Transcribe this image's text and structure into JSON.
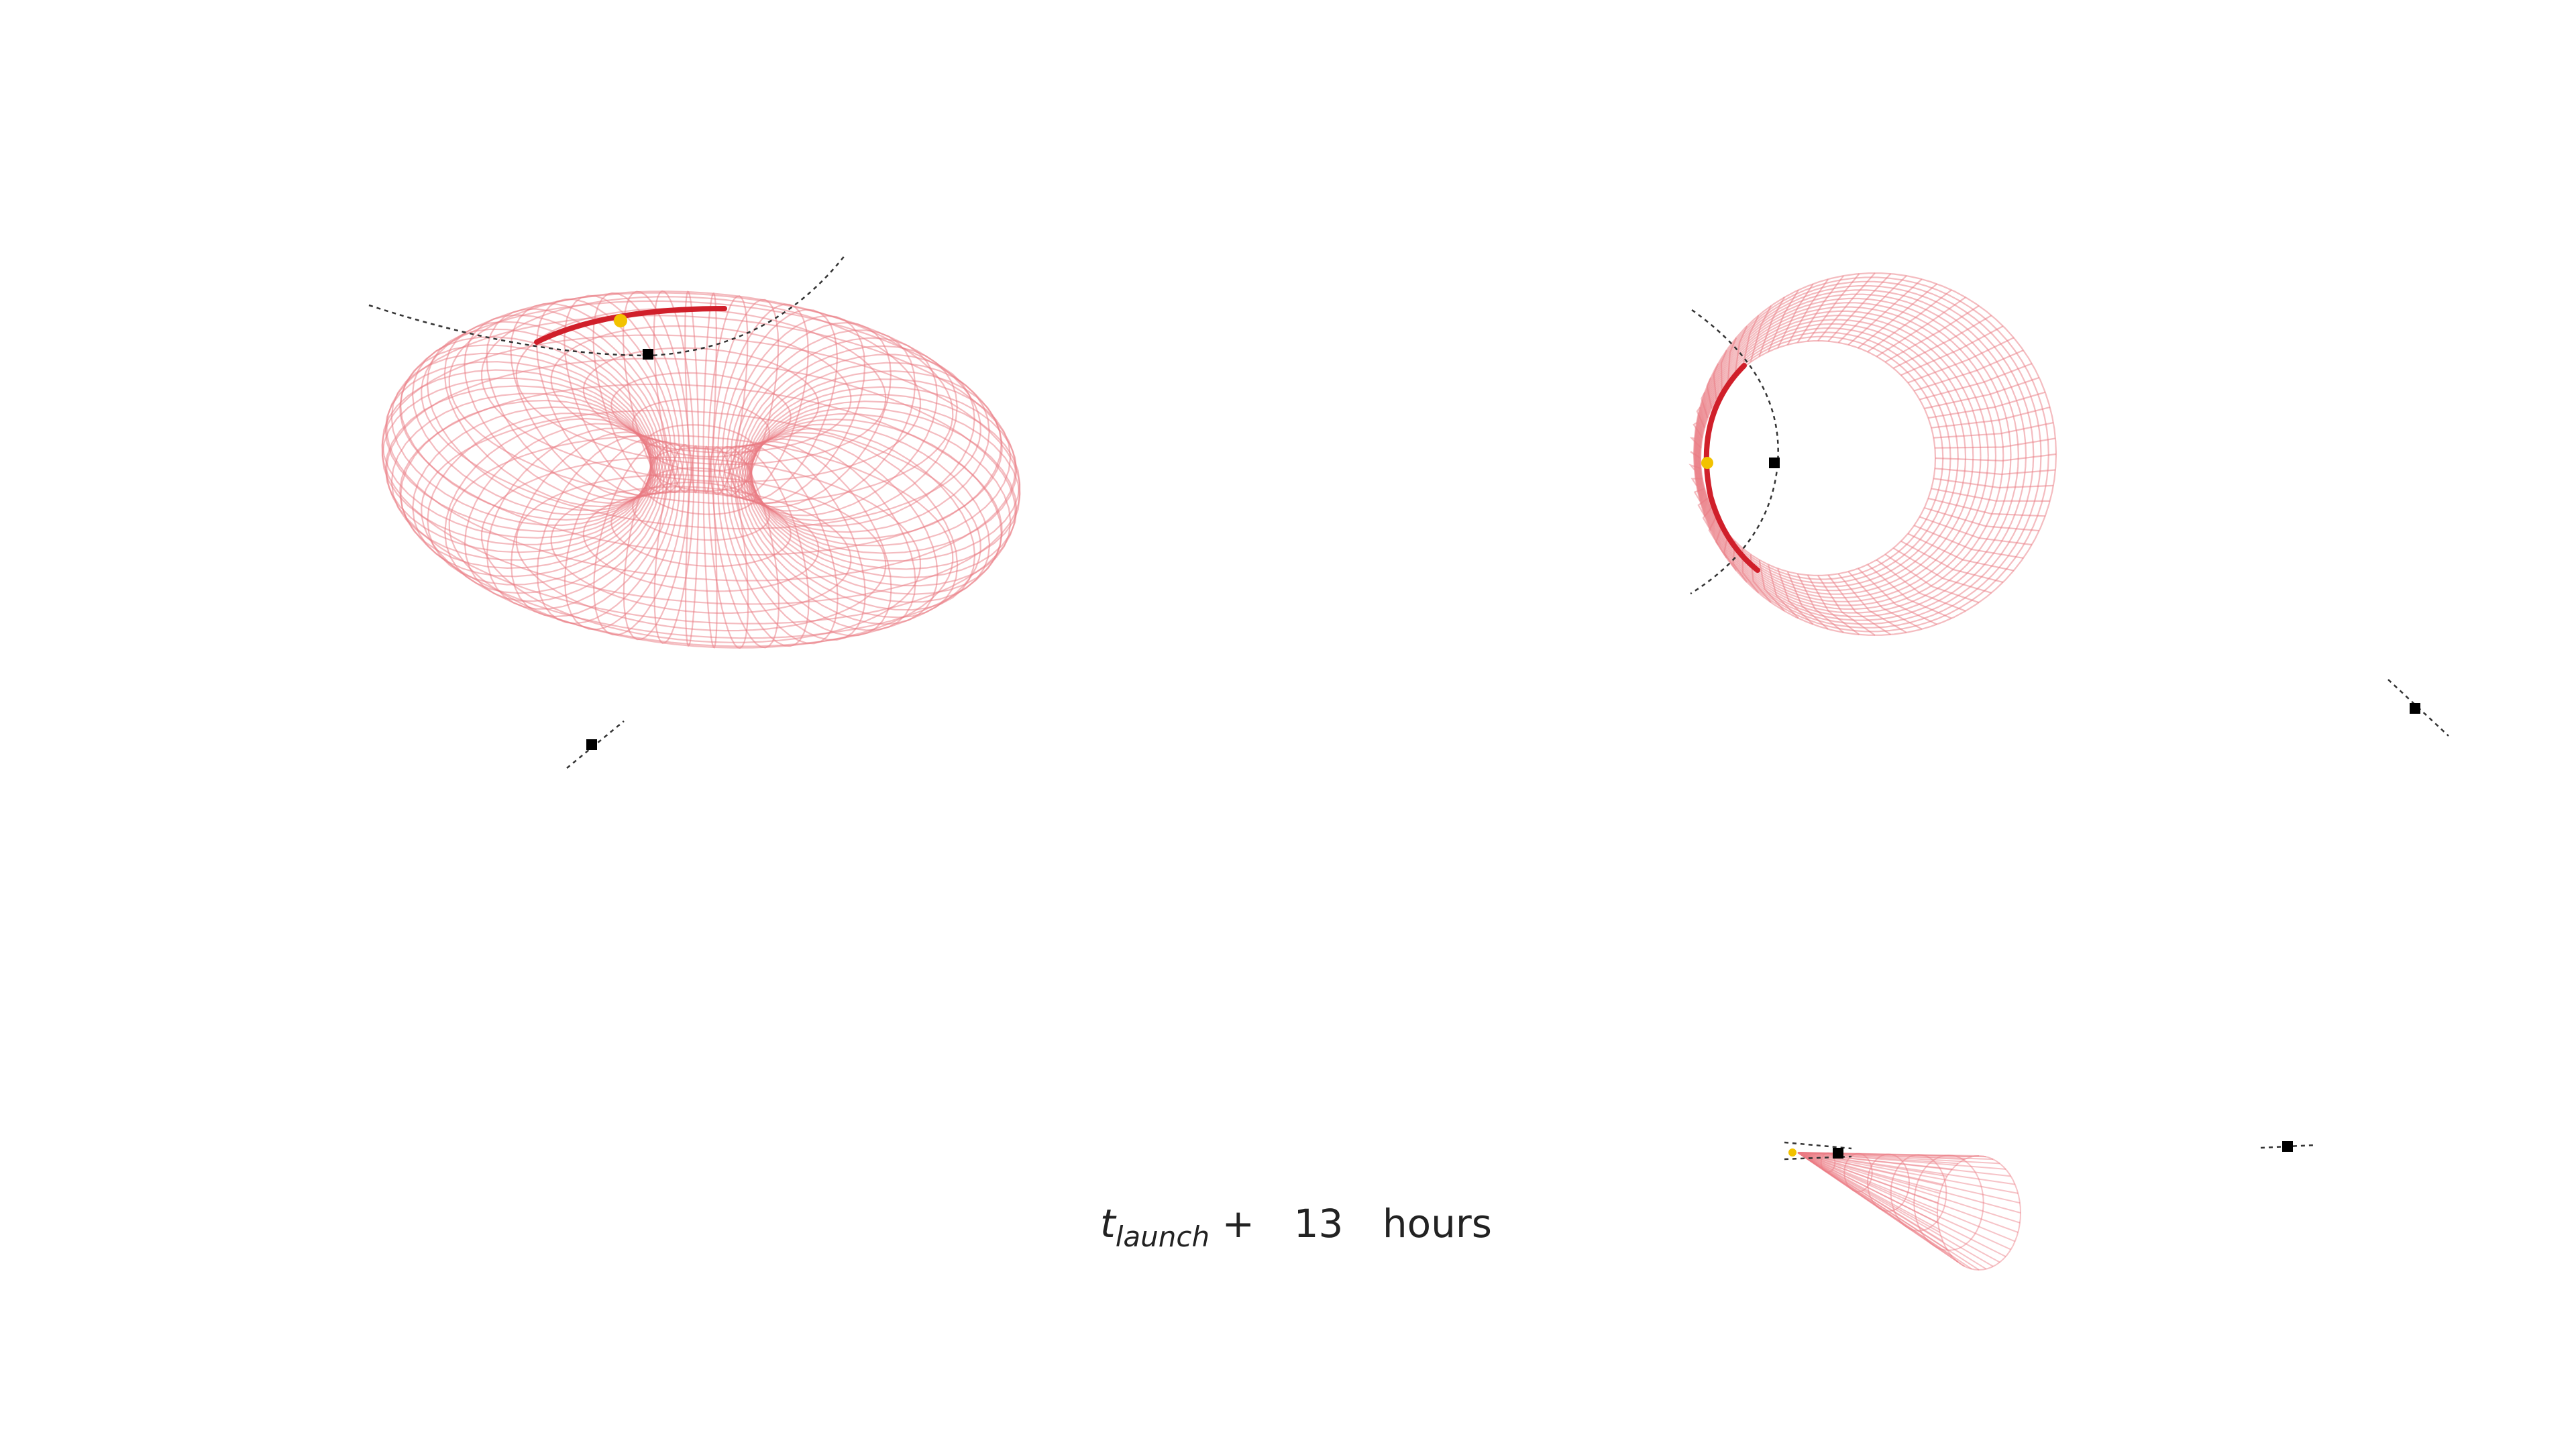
{
  "caption": {
    "t_symbol": "t",
    "subscript": "launch",
    "operator": "+",
    "value": "13",
    "unit": "hours"
  },
  "colors": {
    "mesh": "#ea7a82",
    "arc": "#d01f2a",
    "marker": "#000000",
    "object": "#f2c200",
    "orbit_line": "#333333"
  },
  "views": [
    "perspective-view",
    "top-view",
    "side-view"
  ],
  "icons": [
    "square-marker-icon",
    "dot-marker-icon"
  ]
}
